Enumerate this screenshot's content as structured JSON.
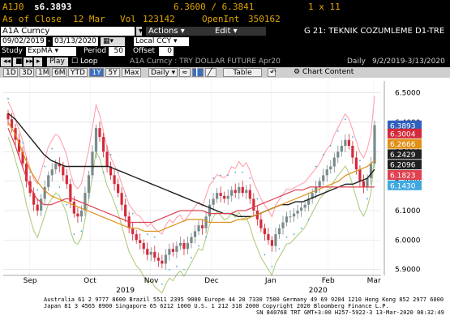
{
  "quote": {
    "ticker": "A1J0",
    "last": "s6.3893",
    "range": "6.3600 / 6.3841",
    "size": "1 x 11",
    "close_label": "As of Close",
    "close_date": "12 Mar",
    "vol_label": "Vol",
    "vol_value": "123142",
    "oi_label": "OpenInt",
    "oi_value": "350162"
  },
  "toolbar": {
    "security": "A1A Curncy",
    "actions_menu": "Actions",
    "edit_menu": "Edit",
    "function_title": "G 21: TEKNIK COZUMLEME D1-TRE",
    "date_from": "09/02/2019",
    "date_to": "03/13/2020",
    "currency": "Local CCY",
    "study_label": "Study",
    "study_value": "ExpMA",
    "period_label": "Period",
    "period_value": "50",
    "offset_label": "Offset",
    "offset_value": "0",
    "play_label": "Play",
    "loop_label": "Loop",
    "chart_title": "A1A Curncy : TRY DOLLAR FUTURE Apr20",
    "frequency": "Daily",
    "date_span": "9/2/2019-3/13/2020"
  },
  "rangebar": {
    "ranges": [
      "1D",
      "3D",
      "1M",
      "6M",
      "YTD",
      "1Y",
      "5Y",
      "Max"
    ],
    "active": "1Y",
    "frequency": "Daily",
    "table_label": "Table",
    "chart_content_label": "Chart Content"
  },
  "colors": {
    "background": "#ffffff",
    "up_candle": "#7a8a8a",
    "down_candle": "#d42a3a",
    "ema_black": "#202020",
    "ema_orange": "#e09018",
    "ema_red": "#e04050",
    "bollinger_pink": "#ff9aa8",
    "bollinger_green": "#a8c878",
    "sar_dots": "#40a8e0",
    "last_price_tag": "#3060c0"
  },
  "chart_data": {
    "type": "candlestick",
    "x_ticks": [
      "Sep",
      "Oct",
      "Nov",
      "Dec",
      "Jan",
      "Feb",
      "Mar"
    ],
    "year_labels": [
      "2019",
      "2020"
    ],
    "y_ticks": [
      "5.9000",
      "6.0000",
      "6.1000",
      "6.2000",
      "6.3000",
      "6.4000",
      "6.5000"
    ],
    "ylim": [
      5.88,
      6.54
    ],
    "price_tags": [
      {
        "value": "6.3893",
        "color": "#3060c0"
      },
      {
        "value": "6.3004",
        "color": "#d42a3a"
      },
      {
        "value": "6.2666",
        "color": "#e09018"
      },
      {
        "value": "6.2429",
        "color": "#202020"
      },
      {
        "value": "6.2096",
        "color": "#202020"
      },
      {
        "value": "6.1823",
        "color": "#e04050"
      },
      {
        "value": "6.1430",
        "color": "#40a8e0"
      }
    ],
    "closes": [
      6.41,
      6.38,
      6.34,
      6.3,
      6.26,
      6.2,
      6.16,
      6.12,
      6.1,
      6.14,
      6.18,
      6.22,
      6.24,
      6.26,
      6.25,
      6.22,
      6.19,
      6.13,
      6.09,
      6.08,
      6.1,
      6.16,
      6.22,
      6.3,
      6.38,
      6.35,
      6.3,
      6.25,
      6.22,
      6.19,
      6.16,
      6.12,
      6.08,
      6.04,
      6.02,
      6.0,
      5.99,
      5.97,
      5.95,
      5.96,
      5.94,
      5.93,
      5.92,
      5.95,
      5.97,
      5.96,
      5.98,
      5.99,
      5.97,
      5.99,
      6.01,
      6.03,
      6.05,
      6.04,
      6.08,
      6.12,
      6.14,
      6.16,
      6.15,
      6.14,
      6.15,
      6.17,
      6.16,
      6.18,
      6.16,
      6.17,
      6.14,
      6.1,
      6.07,
      6.04,
      6.02,
      6.0,
      5.98,
      6.02,
      6.04,
      6.06,
      6.08,
      6.08,
      6.09,
      6.1,
      6.11,
      6.12,
      6.14,
      6.16,
      6.18,
      6.2,
      6.22,
      6.24,
      6.25,
      6.28,
      6.3,
      6.32,
      6.34,
      6.32,
      6.28,
      6.24,
      6.2,
      6.18,
      6.21,
      6.26,
      6.39
    ],
    "ema_black": [
      6.43,
      6.41,
      6.38,
      6.35,
      6.32,
      6.29,
      6.27,
      6.26,
      6.25,
      6.25,
      6.25,
      6.25,
      6.25,
      6.25,
      6.25,
      6.24,
      6.23,
      6.22,
      6.21,
      6.2,
      6.19,
      6.18,
      6.17,
      6.16,
      6.15,
      6.14,
      6.13,
      6.12,
      6.11,
      6.1,
      6.09,
      6.09,
      6.08,
      6.08,
      6.08,
      6.09,
      6.1,
      6.11,
      6.12,
      6.12,
      6.13,
      6.13,
      6.14,
      6.15,
      6.16,
      6.17,
      6.18,
      6.19,
      6.19,
      6.2,
      6.21,
      6.24
    ],
    "ema_orange": [
      6.4,
      6.36,
      6.3,
      6.24,
      6.2,
      6.17,
      6.15,
      6.14,
      6.13,
      6.12,
      6.11,
      6.1,
      6.09,
      6.08,
      6.07,
      6.06,
      6.05,
      6.04,
      6.04,
      6.03,
      6.03,
      6.03,
      6.04,
      6.05,
      6.06,
      6.07,
      6.07,
      6.07,
      6.06,
      6.06,
      6.06,
      6.06,
      6.07,
      6.07,
      6.08,
      6.09,
      6.1,
      6.11,
      6.12,
      6.13,
      6.14,
      6.15,
      6.16,
      6.17,
      6.18,
      6.19,
      6.2,
      6.22,
      6.23,
      6.24,
      6.25,
      6.27
    ],
    "ema_red": [
      6.38,
      6.32,
      6.25,
      6.18,
      6.14,
      6.12,
      6.12,
      6.13,
      6.14,
      6.14,
      6.13,
      6.12,
      6.11,
      6.1,
      6.09,
      6.08,
      6.07,
      6.06,
      6.06,
      6.06,
      6.06,
      6.07,
      6.08,
      6.09,
      6.1,
      6.1,
      6.1,
      6.1,
      6.09,
      6.09,
      6.09,
      6.09,
      6.1,
      6.1,
      6.11,
      6.12,
      6.13,
      6.14,
      6.15,
      6.16,
      6.17,
      6.17,
      6.18,
      6.18,
      6.18,
      6.18,
      6.18,
      6.18,
      6.18,
      6.18,
      6.18,
      6.18
    ]
  },
  "footer": {
    "line1": "Australia 61 2 9777 8600  Brazil 5511 2395 9000  Europe 44 20 7330 7500  Germany 49 69 9204 1210  Hong Kong 852 2977 6000",
    "line2": "Japan 81 3 4565 8900      Singapore 65 6212 1000      U.S. 1 212 318 2000        Copyright 2020 Bloomberg Finance L.P.",
    "line3": "SN 840768 TRT  GMT+3:00 H257-5922-3  13-Mar-2020 08:32:49"
  }
}
